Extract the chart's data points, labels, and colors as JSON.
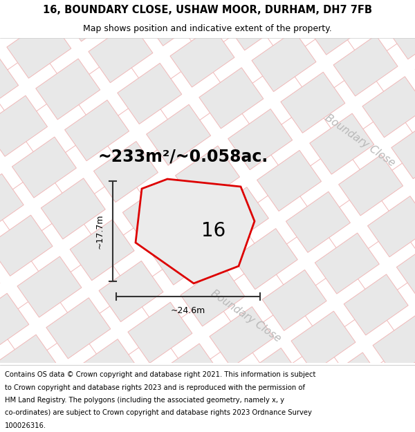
{
  "title_line1": "16, BOUNDARY CLOSE, USHAW MOOR, DURHAM, DH7 7FB",
  "title_line2": "Map shows position and indicative extent of the property.",
  "area_text": "~233m²/~0.058ac.",
  "width_label": "~24.6m",
  "height_label": "~17.7m",
  "property_number": "16",
  "street_name": "Boundary Close",
  "footer_text": "Contains OS data © Crown copyright and database right 2021. This information is subject to Crown copyright and database rights 2023 and is reproduced with the permission of HM Land Registry. The polygons (including the associated geometry, namely x, y co-ordinates) are subject to Crown copyright and database rights 2023 Ordnance Survey 100026316.",
  "bg_color": "#ffffff",
  "road_color": "#f0b8b8",
  "block_fill": "#e8e8e8",
  "block_edge": "#f0b8b8",
  "plot_fill": "#e8e8e8",
  "plot_edge": "#dd0000",
  "dim_color": "#333333",
  "street_color": "#c0c0c0",
  "title_fontsize": 10.5,
  "subtitle_fontsize": 9,
  "area_fontsize": 17,
  "label_fontsize": 9,
  "property_fontsize": 20,
  "street_fontsize": 11,
  "footer_fontsize": 7.2
}
